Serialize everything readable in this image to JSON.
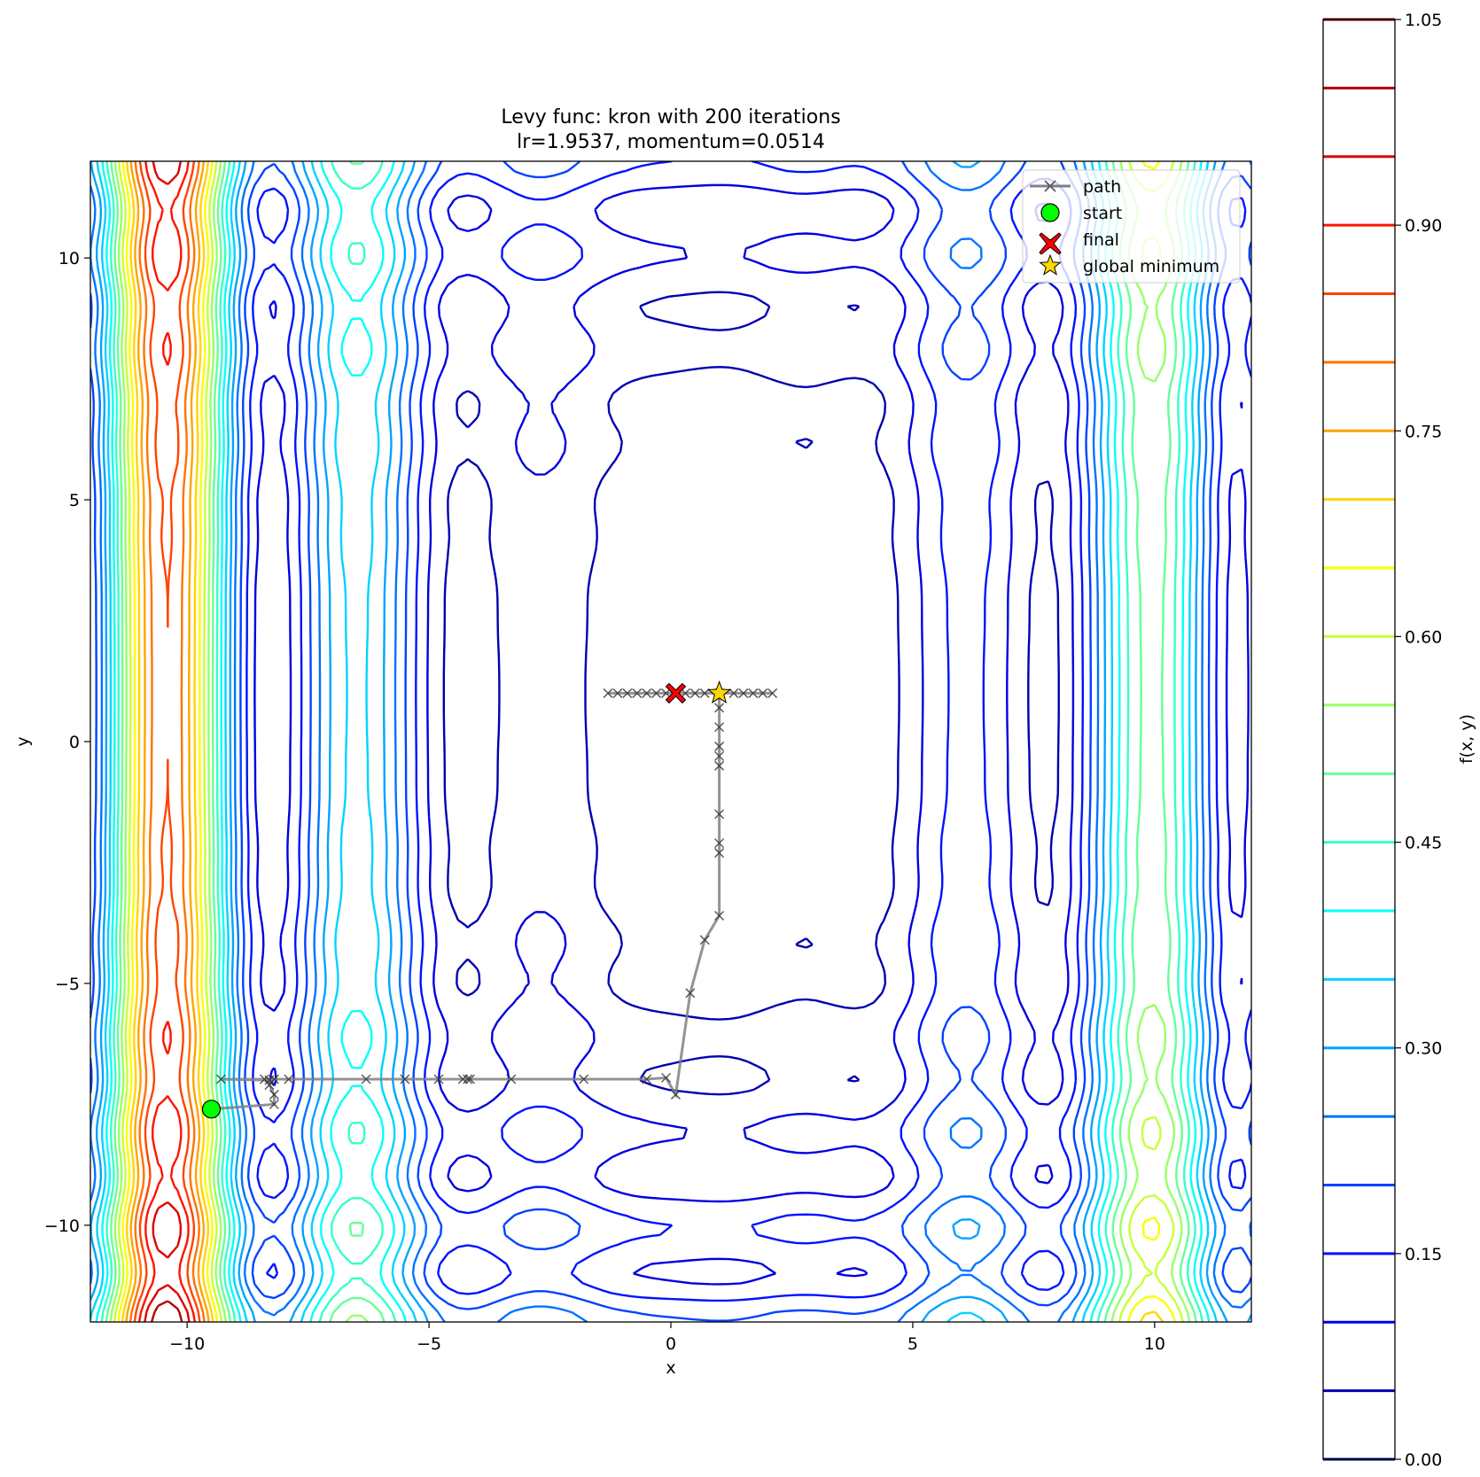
{
  "chart_data": {
    "type": "contour",
    "title": "Levy func: kron with 200 iterations",
    "subtitle": "lr=1.9537, momentum=0.0514",
    "xlabel": "x",
    "ylabel": "y",
    "xlim": [
      -12,
      12
    ],
    "ylim": [
      -12,
      12
    ],
    "xticks": [
      -10,
      -5,
      0,
      5,
      10
    ],
    "yticks": [
      -10,
      -5,
      0,
      5,
      10
    ],
    "xtick_labels": [
      "−10",
      "−5",
      "0",
      "5",
      "10"
    ],
    "ytick_labels": [
      "−10",
      "−5",
      "0",
      "5",
      "10"
    ],
    "grid": false,
    "legend_position": "top-right",
    "legend": [
      {
        "label": "path",
        "marker": "x-line",
        "color": "#808080"
      },
      {
        "label": "start",
        "marker": "circle",
        "color": "#00ff00"
      },
      {
        "label": "final",
        "marker": "X",
        "color": "#ff0000"
      },
      {
        "label": "global minimum",
        "marker": "star",
        "color": "#ffd700"
      }
    ],
    "start": {
      "x": -9.5,
      "y": -7.6
    },
    "final": {
      "x": 0.1,
      "y": 1.0
    },
    "global_minimum": {
      "x": 1.0,
      "y": 1.0
    },
    "path": [
      [
        -9.5,
        -7.6
      ],
      [
        -8.2,
        -7.5
      ],
      [
        -8.2,
        -7.3
      ],
      [
        -8.3,
        -7.1
      ],
      [
        -8.3,
        -7.0
      ],
      [
        -9.3,
        -6.98
      ],
      [
        -8.4,
        -6.98
      ],
      [
        -8.2,
        -6.98
      ],
      [
        -7.9,
        -6.98
      ],
      [
        -6.3,
        -6.98
      ],
      [
        -5.5,
        -6.98
      ],
      [
        -4.8,
        -6.98
      ],
      [
        -4.3,
        -6.98
      ],
      [
        -4.2,
        -6.98
      ],
      [
        -4.15,
        -6.98
      ],
      [
        -3.3,
        -6.98
      ],
      [
        -1.8,
        -6.98
      ],
      [
        -0.5,
        -6.98
      ],
      [
        -0.1,
        -6.95
      ],
      [
        0.1,
        -7.3
      ],
      [
        0.4,
        -5.2
      ],
      [
        0.7,
        -4.1
      ],
      [
        1.0,
        -3.6
      ],
      [
        1.0,
        -2.3
      ],
      [
        1.0,
        -2.1
      ],
      [
        1.0,
        -1.5
      ],
      [
        1.0,
        -0.5
      ],
      [
        1.0,
        -0.3
      ],
      [
        1.0,
        -0.1
      ],
      [
        1.0,
        0.3
      ],
      [
        1.0,
        0.7
      ],
      [
        1.0,
        1.0
      ],
      [
        -1.3,
        1.0
      ],
      [
        -1.1,
        1.0
      ],
      [
        -0.9,
        1.0
      ],
      [
        -0.7,
        1.0
      ],
      [
        -0.5,
        1.0
      ],
      [
        -0.3,
        1.0
      ],
      [
        -0.1,
        1.0
      ],
      [
        0.3,
        1.0
      ],
      [
        0.5,
        1.0
      ],
      [
        0.7,
        1.0
      ],
      [
        1.3,
        1.0
      ],
      [
        1.5,
        1.0
      ],
      [
        1.7,
        1.0
      ],
      [
        1.9,
        1.0
      ],
      [
        2.1,
        1.0
      ],
      [
        0.1,
        1.0
      ]
    ],
    "colorbar": {
      "label": "f(x, y)",
      "min": 0.0,
      "max": 1.05,
      "levels": [
        0.0,
        0.05,
        0.1,
        0.15,
        0.2,
        0.25,
        0.3,
        0.35,
        0.4,
        0.45,
        0.5,
        0.55,
        0.6,
        0.65,
        0.7,
        0.75,
        0.8,
        0.85,
        0.9,
        0.95,
        1.0,
        1.05
      ],
      "ticks": [
        0.0,
        0.15,
        0.3,
        0.45,
        0.6,
        0.75,
        0.9,
        1.05
      ],
      "tick_labels": [
        "0.00",
        "0.15",
        "0.30",
        "0.45",
        "0.60",
        "0.75",
        "0.90",
        "1.05"
      ],
      "colormap": "jet"
    }
  }
}
